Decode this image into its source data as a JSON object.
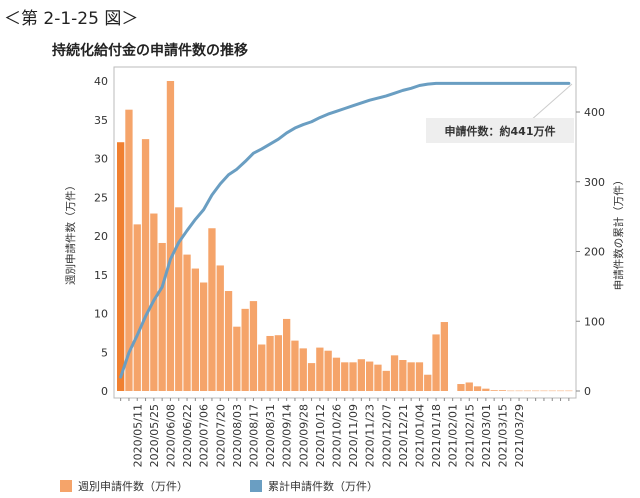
{
  "figure_label": "＜第 2-1-25 図＞",
  "chart_data": {
    "type": "bar",
    "title": "持続化給付金の申請件数の推移",
    "ylabel": "週別申請件数（万件）",
    "y2label": "申請件数の累計（万件）",
    "ylim": [
      0,
      40
    ],
    "y2lim": [
      0,
      440
    ],
    "yticks": [
      0,
      5,
      10,
      15,
      20,
      25,
      30,
      35,
      40
    ],
    "y2ticks": [
      0,
      100,
      200,
      300,
      400
    ],
    "grid": false,
    "legend_position": "bottom",
    "x_labels": [
      "2020/05/11",
      "2020/05/25",
      "2020/06/08",
      "2020/06/22",
      "2020/07/06",
      "2020/07/20",
      "2020/08/03",
      "2020/08/17",
      "2020/08/31",
      "2020/09/14",
      "2020/09/28",
      "2020/10/12",
      "2020/10/26",
      "2020/11/09",
      "2020/11/23",
      "2020/12/07",
      "2020/12/21",
      "2021/01/04",
      "2021/01/18",
      "2021/02/01",
      "2021/02/15",
      "2021/03/01",
      "2021/03/15",
      "2021/03/29"
    ],
    "annotation": "申請件数：約441万件",
    "series": [
      {
        "name": "週別申請件数（万件）",
        "color": "#f5a46a",
        "highlight_color": "#f08030",
        "values": [
          32.1,
          36.3,
          21.5,
          32.5,
          22.9,
          19.1,
          40.0,
          23.7,
          17.6,
          15.8,
          14.0,
          21.0,
          16.2,
          12.9,
          8.3,
          10.6,
          11.6,
          6.0,
          7.1,
          7.2,
          9.3,
          6.5,
          5.5,
          3.6,
          5.6,
          5.2,
          4.3,
          3.7,
          3.7,
          4.1,
          3.8,
          3.4,
          2.6,
          4.6,
          4.0,
          3.7,
          3.7,
          2.1,
          7.3,
          8.9,
          0,
          0.9,
          1.1,
          0.6,
          0.3,
          0.1,
          0.1,
          0.05,
          0.05,
          0.05,
          0.05,
          0.05,
          0.05,
          0.05,
          0.05
        ]
      },
      {
        "name": "累計申請件数（万件）",
        "color": "#6a9ec2",
        "values": [
          20,
          55,
          80,
          107,
          130,
          149,
          189,
          213,
          230,
          246,
          260,
          281,
          297,
          310,
          318,
          329,
          341,
          347,
          354,
          361,
          370,
          377,
          382,
          386,
          392,
          397,
          401,
          405,
          409,
          413,
          417,
          420,
          423,
          427,
          431,
          434,
          438,
          440,
          441,
          441,
          441,
          441,
          441,
          441,
          441,
          441,
          441,
          441,
          441,
          441,
          441,
          441,
          441,
          441,
          441
        ]
      }
    ]
  }
}
